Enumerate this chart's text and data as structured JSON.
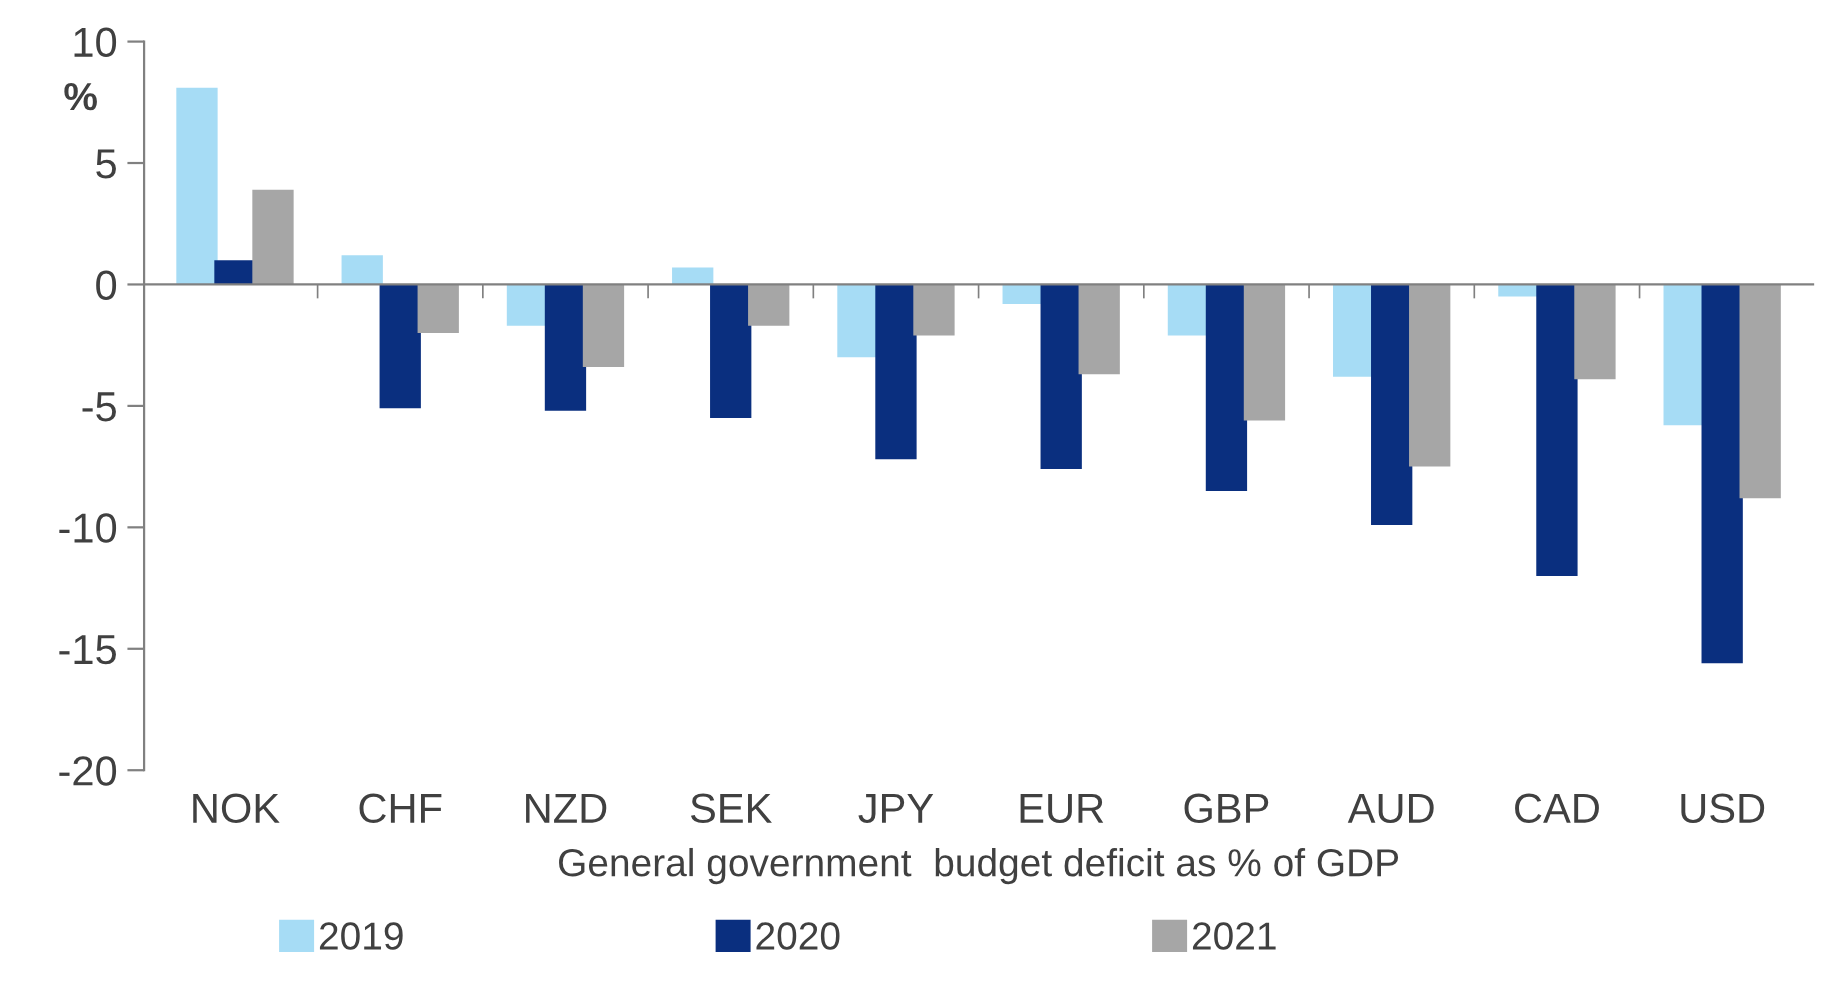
{
  "chart_data": {
    "type": "bar",
    "xlabel": "General government  budget deficit as % of GDP",
    "ylabel": "%",
    "categories": [
      "NOK",
      "CHF",
      "NZD",
      "SEK",
      "JPY",
      "EUR",
      "GBP",
      "AUD",
      "CAD",
      "USD"
    ],
    "series": [
      {
        "name": "2019",
        "color": "#a6dcf5",
        "values": [
          8.1,
          1.2,
          -1.7,
          0.7,
          -3.0,
          -0.8,
          -2.1,
          -3.8,
          -0.5,
          -5.8
        ]
      },
      {
        "name": "2020",
        "color": "#0a2f7f",
        "values": [
          1.0,
          -5.1,
          -5.2,
          -5.5,
          -7.2,
          -7.6,
          -8.5,
          -9.9,
          -12.0,
          -15.6
        ]
      },
      {
        "name": "2021",
        "color": "#a6a6a6",
        "values": [
          3.9,
          -2.0,
          -3.4,
          -1.7,
          -2.1,
          -3.7,
          -5.6,
          -7.5,
          -3.9,
          -8.8
        ]
      }
    ],
    "ylim": [
      -20,
      10
    ],
    "yticks": [
      -20,
      -15,
      -10,
      -5,
      0,
      5,
      10
    ],
    "legend": "bottom"
  }
}
